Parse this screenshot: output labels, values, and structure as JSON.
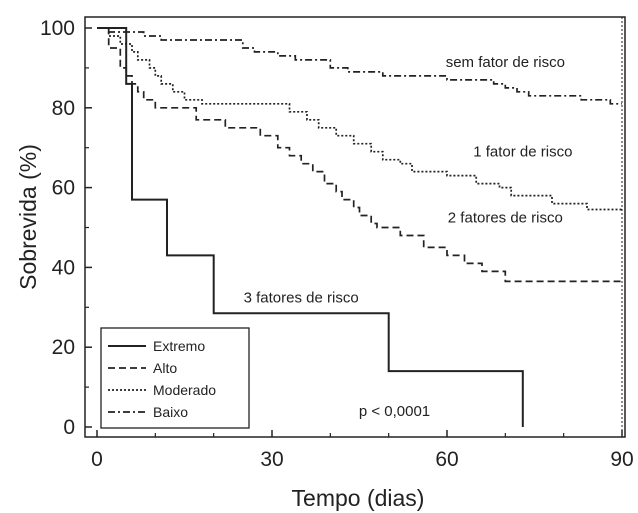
{
  "chart_data": {
    "type": "line",
    "step": true,
    "xlabel": "Tempo (dias)",
    "ylabel": "Sobrevida (%)",
    "xlim": [
      0,
      90
    ],
    "ylim": [
      0,
      100
    ],
    "xticks": [
      0,
      30,
      60,
      90
    ],
    "yticks": [
      0,
      20,
      40,
      60,
      80,
      100
    ],
    "xtick_labels": [
      "0",
      "30",
      "60",
      "90"
    ],
    "ytick_labels": [
      "0",
      "20",
      "40",
      "60",
      "80",
      "100"
    ],
    "grid": false,
    "legend_position": "bottom-left",
    "line_color": "#222222",
    "series": [
      {
        "name": "Extremo",
        "dash": "solid",
        "points": [
          [
            0,
            100
          ],
          [
            5,
            100
          ],
          [
            5,
            86
          ],
          [
            6,
            86
          ],
          [
            6,
            57
          ],
          [
            12,
            57
          ],
          [
            12,
            43
          ],
          [
            20,
            43
          ],
          [
            20,
            28.5
          ],
          [
            50,
            28.5
          ],
          [
            50,
            14
          ],
          [
            73,
            14
          ],
          [
            73,
            0
          ]
        ]
      },
      {
        "name": "Alto",
        "dash": "dashed",
        "points": [
          [
            0,
            100
          ],
          [
            2,
            100
          ],
          [
            2,
            95
          ],
          [
            4,
            95
          ],
          [
            4,
            90
          ],
          [
            5,
            90
          ],
          [
            5,
            88
          ],
          [
            6,
            88
          ],
          [
            6,
            86
          ],
          [
            7,
            86
          ],
          [
            7,
            84
          ],
          [
            8,
            84
          ],
          [
            8,
            82
          ],
          [
            10,
            82
          ],
          [
            10,
            80
          ],
          [
            17,
            80
          ],
          [
            17,
            77
          ],
          [
            22,
            77
          ],
          [
            22,
            75
          ],
          [
            28,
            75
          ],
          [
            28,
            73
          ],
          [
            31,
            73
          ],
          [
            31,
            70
          ],
          [
            33,
            70
          ],
          [
            33,
            68
          ],
          [
            35,
            68
          ],
          [
            35,
            66
          ],
          [
            37,
            66
          ],
          [
            37,
            64
          ],
          [
            39,
            64
          ],
          [
            39,
            61
          ],
          [
            41,
            61
          ],
          [
            41,
            59
          ],
          [
            42,
            59
          ],
          [
            42,
            57
          ],
          [
            44,
            57
          ],
          [
            44,
            55
          ],
          [
            45,
            55
          ],
          [
            45,
            53
          ],
          [
            47,
            53
          ],
          [
            47,
            51
          ],
          [
            48,
            51
          ],
          [
            48,
            50
          ],
          [
            52,
            50
          ],
          [
            52,
            48
          ],
          [
            56,
            48
          ],
          [
            56,
            45
          ],
          [
            60,
            45
          ],
          [
            60,
            43
          ],
          [
            63,
            43
          ],
          [
            63,
            41
          ],
          [
            66,
            41
          ],
          [
            66,
            39
          ],
          [
            70,
            39
          ],
          [
            70,
            36.5
          ],
          [
            90,
            36.5
          ]
        ]
      },
      {
        "name": "Moderado",
        "dash": "dotted",
        "points": [
          [
            0,
            100
          ],
          [
            2,
            100
          ],
          [
            2,
            98
          ],
          [
            4,
            98
          ],
          [
            4,
            96
          ],
          [
            6,
            96
          ],
          [
            6,
            94
          ],
          [
            7,
            94
          ],
          [
            7,
            92
          ],
          [
            9,
            92
          ],
          [
            9,
            90
          ],
          [
            10,
            90
          ],
          [
            10,
            88
          ],
          [
            11,
            88
          ],
          [
            11,
            86
          ],
          [
            13,
            86
          ],
          [
            13,
            84
          ],
          [
            15,
            84
          ],
          [
            15,
            82
          ],
          [
            18,
            82
          ],
          [
            18,
            81
          ],
          [
            33,
            81
          ],
          [
            33,
            79
          ],
          [
            36,
            79
          ],
          [
            36,
            77
          ],
          [
            38,
            77
          ],
          [
            38,
            75
          ],
          [
            41,
            75
          ],
          [
            41,
            73
          ],
          [
            44,
            73
          ],
          [
            44,
            71
          ],
          [
            47,
            71
          ],
          [
            47,
            69
          ],
          [
            49,
            69
          ],
          [
            49,
            67
          ],
          [
            52,
            67
          ],
          [
            52,
            66
          ],
          [
            54,
            66
          ],
          [
            54,
            64
          ],
          [
            60,
            64
          ],
          [
            60,
            63
          ],
          [
            65,
            63
          ],
          [
            65,
            61
          ],
          [
            69,
            61
          ],
          [
            69,
            60
          ],
          [
            71,
            60
          ],
          [
            71,
            58
          ],
          [
            78,
            58
          ],
          [
            78,
            56
          ],
          [
            84,
            56
          ],
          [
            84,
            54.5
          ],
          [
            90,
            54.5
          ]
        ]
      },
      {
        "name": "Baixo",
        "dash": "dashdot",
        "points": [
          [
            0,
            100
          ],
          [
            2,
            100
          ],
          [
            2,
            99
          ],
          [
            8,
            99
          ],
          [
            8,
            98
          ],
          [
            11,
            98
          ],
          [
            11,
            97
          ],
          [
            25,
            97
          ],
          [
            25,
            95
          ],
          [
            27,
            95
          ],
          [
            27,
            94
          ],
          [
            31,
            94
          ],
          [
            31,
            93
          ],
          [
            34,
            93
          ],
          [
            34,
            92
          ],
          [
            40,
            92
          ],
          [
            40,
            90
          ],
          [
            43,
            90
          ],
          [
            43,
            89
          ],
          [
            49,
            89
          ],
          [
            49,
            88
          ],
          [
            60,
            88
          ],
          [
            60,
            87
          ],
          [
            68,
            87
          ],
          [
            68,
            86
          ],
          [
            70,
            86
          ],
          [
            70,
            85
          ],
          [
            72,
            85
          ],
          [
            72,
            84
          ],
          [
            74,
            84
          ],
          [
            74,
            83
          ],
          [
            83,
            83
          ],
          [
            83,
            82
          ],
          [
            88,
            82
          ],
          [
            88,
            81
          ],
          [
            90,
            81
          ]
        ]
      }
    ],
    "annotations": [
      {
        "text": "sem fator de risco",
        "x": 70,
        "y": 91.5
      },
      {
        "text": "1 fator de risco",
        "x": 73,
        "y": 69
      },
      {
        "text": "2 fatores de risco",
        "x": 70,
        "y": 52.5
      },
      {
        "text": "3 fatores de risco",
        "x": 35,
        "y": 32.5
      },
      {
        "text": "p < 0,0001",
        "x": 51,
        "y": 4
      }
    ]
  }
}
